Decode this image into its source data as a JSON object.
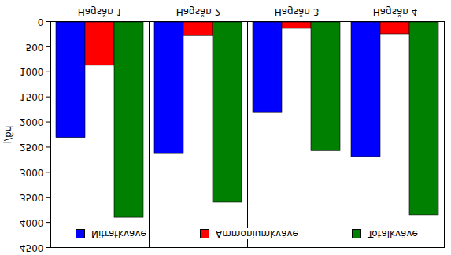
{
  "chart_data": {
    "type": "bar",
    "categories": [
      "Hagsån 1",
      "Hagsån 2",
      "Hagsån 3",
      "Hagsån 4"
    ],
    "series": [
      {
        "name": "Nitratkväve",
        "color": "#0000ff",
        "values": [
          2300,
          2620,
          1790,
          2680
        ]
      },
      {
        "name": "Ammoniumkväve",
        "color": "#ff0000",
        "values": [
          860,
          270,
          125,
          235
        ]
      },
      {
        "name": "Totalkväve",
        "color": "#008000",
        "values": [
          3890,
          3590,
          2560,
          3840
        ]
      }
    ],
    "y_label": "µg/l",
    "ylim": [
      0,
      4500
    ],
    "yticks": [
      0,
      500,
      1000,
      1500,
      2000,
      2500,
      3000,
      3500,
      4000,
      4500
    ],
    "grid": false,
    "legend": "top"
  }
}
